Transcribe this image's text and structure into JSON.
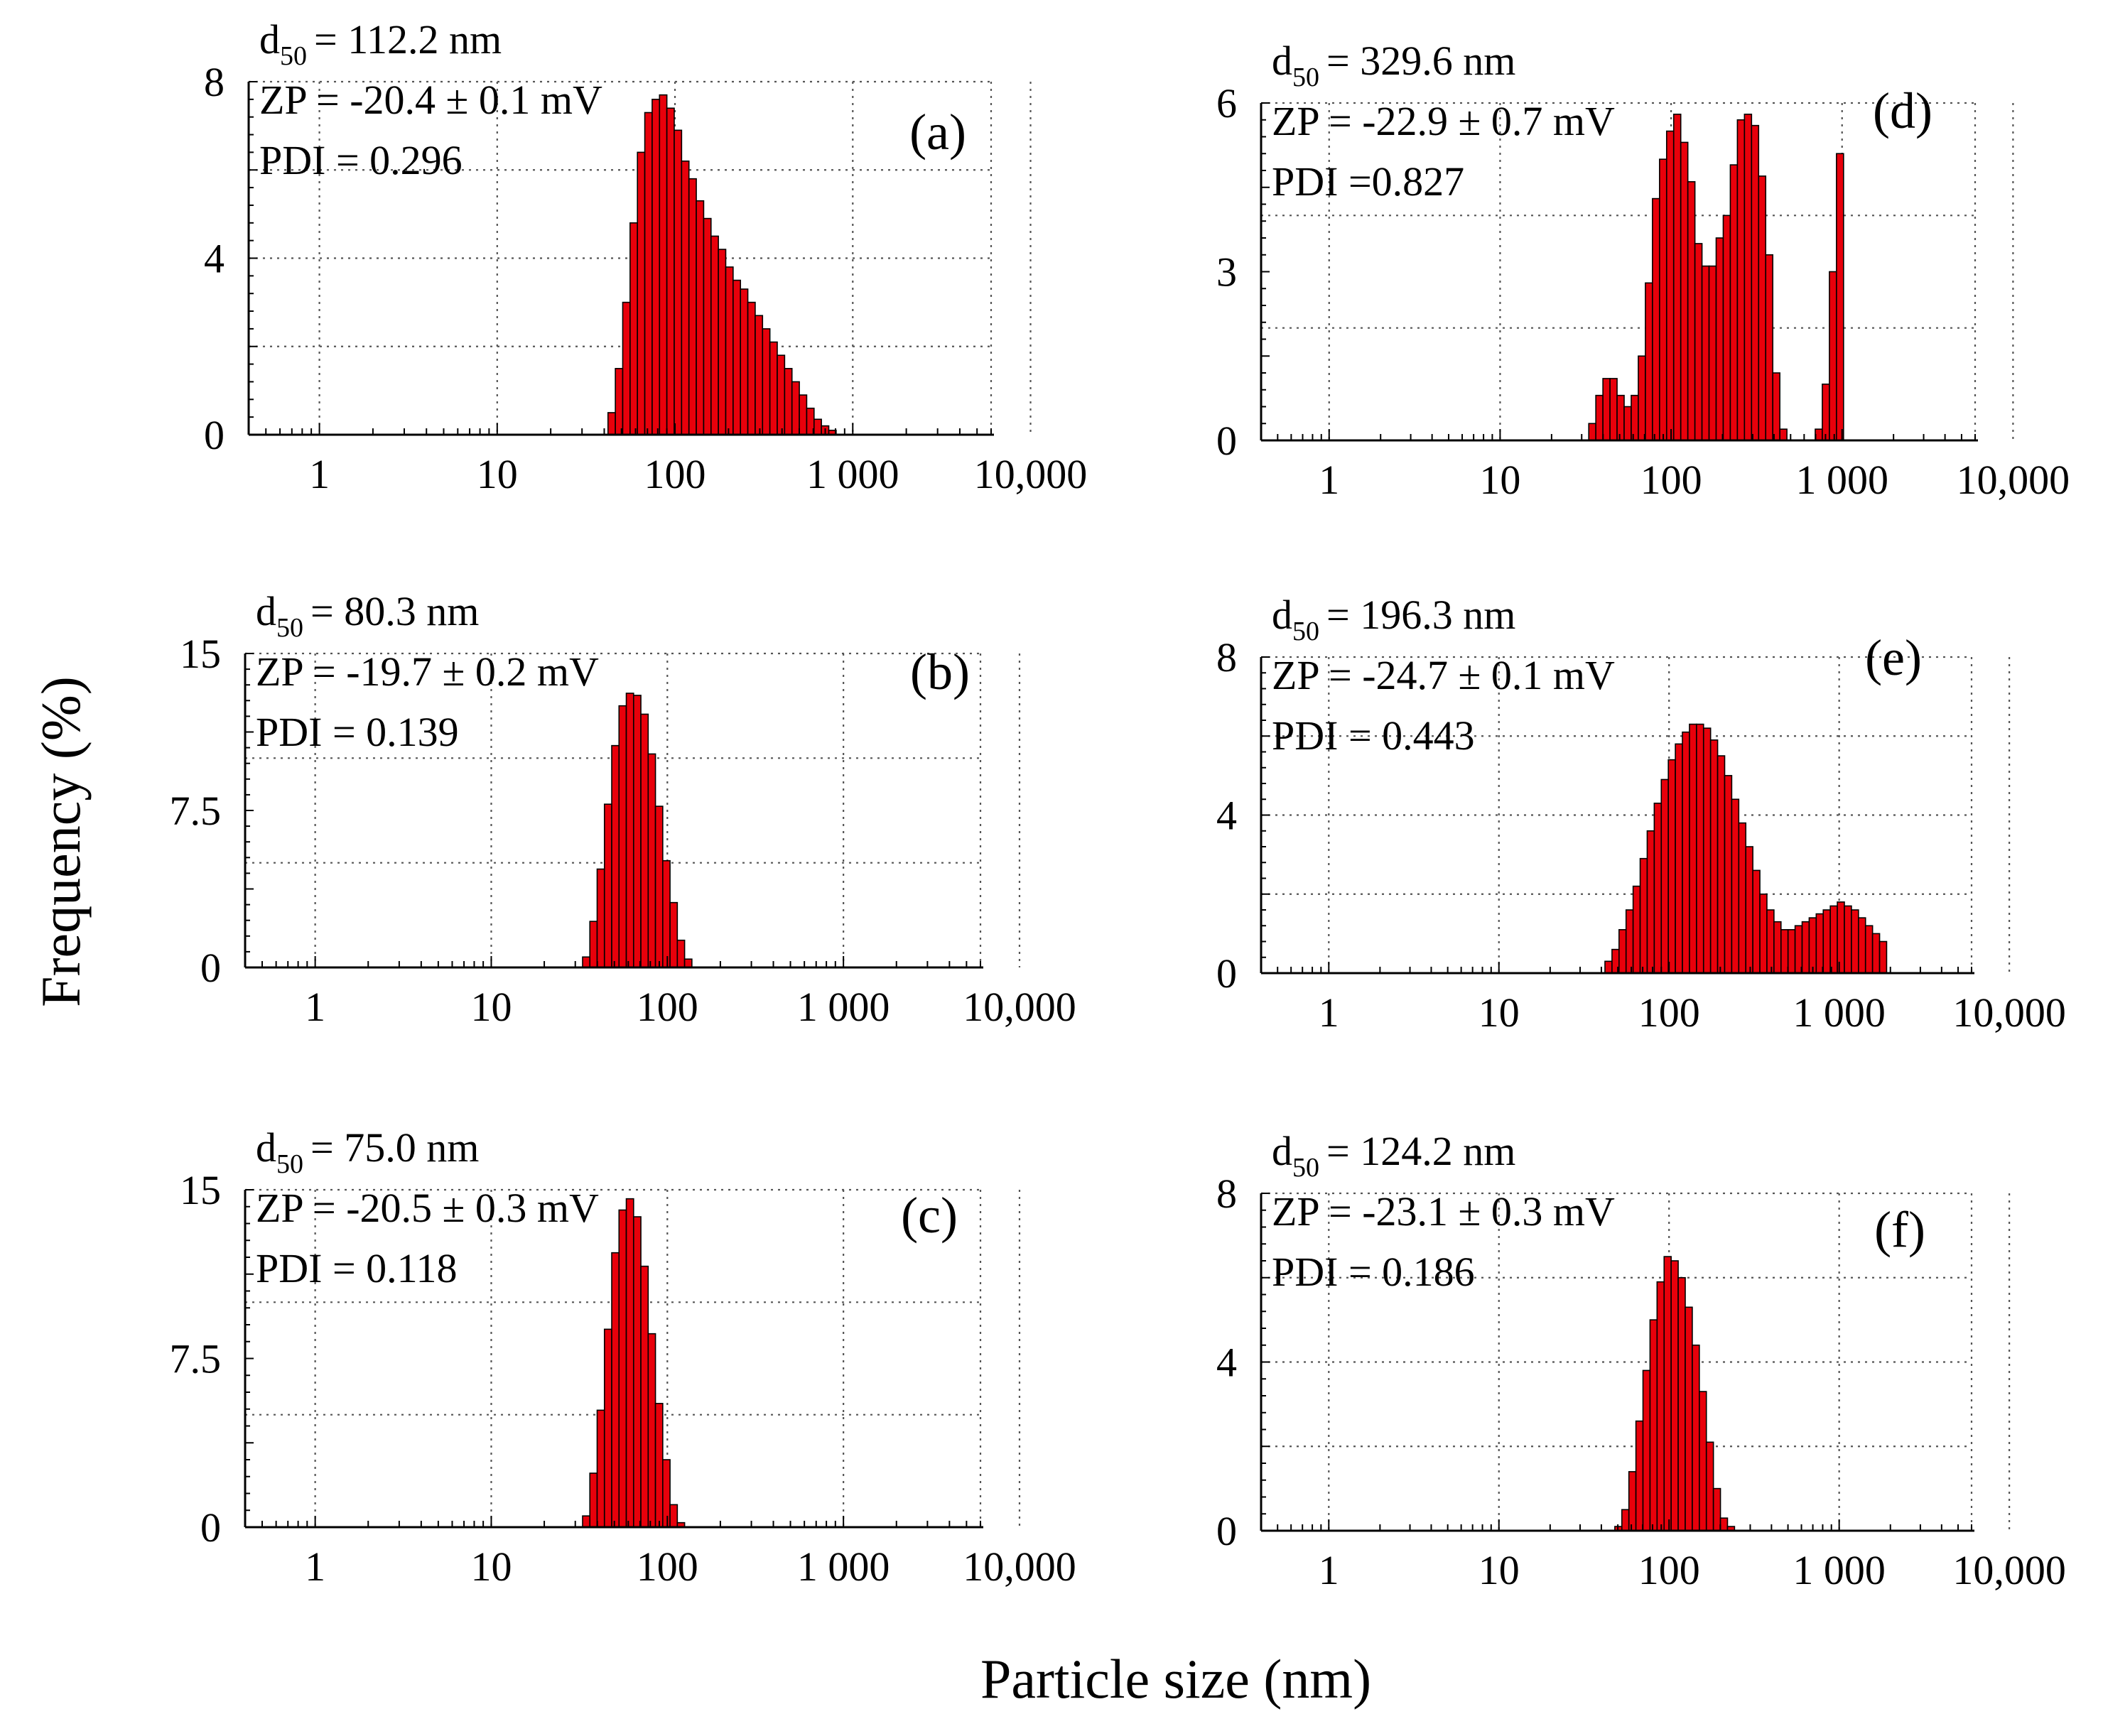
{
  "figure": {
    "ylabel": "Frequency (%)",
    "xlabel": "Particle size (nm)"
  },
  "chart_data": [
    {
      "panel": "(a)",
      "type": "bar",
      "d50_value": "= 112.2 nm",
      "zp": "ZP = -20.4 ± 0.1 mV",
      "pdi": "PDI = 0.296",
      "ylim": [
        0,
        8
      ],
      "yticks": [
        0,
        4,
        8
      ],
      "ytick_labels": [
        "0",
        "4",
        "8"
      ],
      "ygrid": [
        0,
        2,
        4,
        6,
        8
      ],
      "xticks": [
        1,
        10,
        100,
        1000,
        10000
      ],
      "xtick_labels": [
        "1",
        "10",
        "100",
        "1 000",
        "10,000"
      ],
      "xlim": [
        0.4,
        6000
      ],
      "bins": {
        "start": 42,
        "ratio": 1.1
      },
      "values": [
        0.5,
        1.5,
        3,
        4.8,
        6.4,
        7.3,
        7.6,
        7.7,
        7.4,
        6.9,
        6.2,
        5.8,
        5.3,
        4.9,
        4.5,
        4.2,
        3.8,
        3.5,
        3.3,
        3.0,
        2.7,
        2.4,
        2.1,
        1.8,
        1.5,
        1.2,
        0.9,
        0.6,
        0.35,
        0.2,
        0.1
      ]
    },
    {
      "panel": "(b)",
      "type": "bar",
      "d50_value": "= 80.3 nm",
      "zp": "ZP = -19.7 ± 0.2 mV",
      "pdi": "PDI = 0.139",
      "ylim": [
        0,
        15
      ],
      "yticks": [
        0,
        7.5,
        15
      ],
      "ytick_labels": [
        "0",
        "7.5",
        "15"
      ],
      "ygrid": [
        0,
        5,
        10,
        15
      ],
      "xticks": [
        1,
        10,
        100,
        1000,
        10000
      ],
      "xtick_labels": [
        "1",
        "10",
        "100",
        "1 000",
        "10,000"
      ],
      "xlim": [
        0.4,
        6000
      ],
      "bins": {
        "start": 33,
        "ratio": 1.1
      },
      "values": [
        0.5,
        2.2,
        4.7,
        7.8,
        10.6,
        12.5,
        13.1,
        13.0,
        12.1,
        10.2,
        7.7,
        5.1,
        3.1,
        1.3,
        0.4
      ]
    },
    {
      "panel": "(c)",
      "type": "bar",
      "d50_value": "= 75.0 nm",
      "zp": "ZP = -20.5 ± 0.3 mV",
      "pdi": "PDI = 0.118",
      "ylim": [
        0,
        15
      ],
      "yticks": [
        0,
        7.5,
        15
      ],
      "ytick_labels": [
        "0",
        "7.5",
        "15"
      ],
      "ygrid": [
        0,
        5,
        10,
        15
      ],
      "xticks": [
        1,
        10,
        100,
        1000,
        10000
      ],
      "xtick_labels": [
        "1",
        "10",
        "100",
        "1 000",
        "10,000"
      ],
      "xlim": [
        0.4,
        6000
      ],
      "bins": {
        "start": 33,
        "ratio": 1.1
      },
      "values": [
        0.5,
        2.4,
        5.2,
        8.8,
        12.2,
        14.1,
        14.6,
        13.8,
        11.6,
        8.6,
        5.5,
        3.0,
        1.0,
        0.2
      ]
    },
    {
      "panel": "(d)",
      "type": "bar",
      "d50_value": "= 329.6 nm",
      "zp": "ZP = -22.9 ± 0.7 mV",
      "pdi": "PDI =0.827",
      "ylim": [
        0,
        6
      ],
      "yticks": [
        0,
        3,
        6
      ],
      "ytick_labels": [
        "0",
        "3",
        "6"
      ],
      "ygrid": [
        0,
        2,
        4,
        6
      ],
      "xticks": [
        1,
        10,
        100,
        1000,
        10000
      ],
      "xtick_labels": [
        "1",
        "10",
        "100",
        "1 000",
        "10,000"
      ],
      "xlim": [
        0.4,
        6000
      ],
      "bins": {
        "start": 33,
        "ratio": 1.1
      },
      "values": [
        0.3,
        0.8,
        1.1,
        1.1,
        0.8,
        0.6,
        0.8,
        1.5,
        2.8,
        4.3,
        5.0,
        5.5,
        5.8,
        5.3,
        4.6,
        3.5,
        3.1,
        3.1,
        3.6,
        4.0,
        4.9,
        5.7,
        5.8,
        5.6,
        4.7,
        3.3,
        1.2,
        0.2,
        0,
        0,
        0,
        0,
        0.2,
        1.0,
        3.0,
        5.1
      ]
    },
    {
      "panel": "(e)",
      "type": "bar",
      "d50_value": "= 196.3 nm",
      "zp": "ZP = -24.7 ± 0.1 mV",
      "pdi": "PDI = 0.443",
      "ylim": [
        0,
        8
      ],
      "yticks": [
        0,
        4,
        8
      ],
      "ytick_labels": [
        "0",
        "4",
        "8"
      ],
      "ygrid": [
        0,
        2,
        4,
        6,
        8
      ],
      "xticks": [
        1,
        10,
        100,
        1000,
        10000
      ],
      "xtick_labels": [
        "1",
        "10",
        "100",
        "1 000",
        "10,000"
      ],
      "xlim": [
        0.4,
        6000
      ],
      "bins": {
        "start": 42,
        "ratio": 1.1
      },
      "values": [
        0.3,
        0.6,
        1.1,
        1.6,
        2.2,
        2.9,
        3.6,
        4.3,
        4.9,
        5.4,
        5.8,
        6.1,
        6.3,
        6.3,
        6.2,
        5.9,
        5.5,
        5.0,
        4.4,
        3.8,
        3.2,
        2.6,
        2.0,
        1.6,
        1.3,
        1.1,
        1.1,
        1.2,
        1.3,
        1.4,
        1.5,
        1.6,
        1.7,
        1.8,
        1.7,
        1.6,
        1.4,
        1.2,
        1.0,
        0.8
      ]
    },
    {
      "panel": "(f)",
      "type": "bar",
      "d50_value": "= 124.2 nm",
      "zp": "ZP = -23.1 ± 0.3 mV",
      "pdi": "PDI = 0.186",
      "ylim": [
        0,
        8
      ],
      "yticks": [
        0,
        4,
        8
      ],
      "ytick_labels": [
        "0",
        "4",
        "8"
      ],
      "ygrid": [
        0,
        2,
        4,
        6,
        8
      ],
      "xticks": [
        1,
        10,
        100,
        1000,
        10000
      ],
      "xtick_labels": [
        "1",
        "10",
        "100",
        "1 000",
        "10,000"
      ],
      "xlim": [
        0.4,
        6000
      ],
      "bins": {
        "start": 48,
        "ratio": 1.1
      },
      "values": [
        0.1,
        0.5,
        1.4,
        2.6,
        3.8,
        5.0,
        5.9,
        6.5,
        6.4,
        6.0,
        5.3,
        4.4,
        3.3,
        2.1,
        1.0,
        0.3,
        0.1
      ]
    }
  ]
}
